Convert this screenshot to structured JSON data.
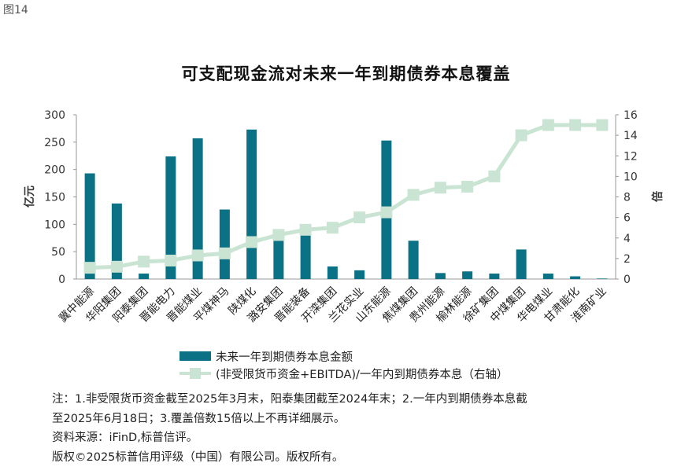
{
  "figure_label": "图14",
  "chart_data": {
    "type": "bar+line",
    "title": "可支配现金流对未来一年到期债券本息覆盖",
    "ylabel_left": "亿元",
    "ylabel_right": "倍",
    "ylim_left": [
      0,
      300
    ],
    "ylim_right": [
      0,
      16
    ],
    "yticks_left": [
      "0",
      "50",
      "100",
      "150",
      "200",
      "250",
      "300"
    ],
    "yticks_right": [
      "0",
      "2",
      "4",
      "6",
      "8",
      "10",
      "12",
      "14",
      "16"
    ],
    "categories": [
      "冀中能源",
      "华阳集团",
      "阳泰集团",
      "晋能电力",
      "晋能煤业",
      "平煤神马",
      "陕煤化",
      "潞安集团",
      "晋能装备",
      "开滦集团",
      "兰花实业",
      "山东能源",
      "焦煤集团",
      "贵州能源",
      "榆林能源",
      "徐矿集团",
      "中煤集团",
      "华电煤业",
      "甘肃能化",
      "淮南矿业"
    ],
    "series": [
      {
        "name": "未来一年到期债券本息金额",
        "type": "bar",
        "axis": "left",
        "color": "#0b7285",
        "values": [
          193,
          138,
          10,
          224,
          257,
          127,
          273,
          70,
          80,
          23,
          16,
          253,
          70,
          11,
          14,
          10,
          54,
          10,
          5,
          1
        ]
      },
      {
        "name": "(非受限货币资金+EBITDA)/一年内到期债券本息（右轴）",
        "type": "line",
        "axis": "right",
        "color": "#c9e4d2",
        "values": [
          1.1,
          1.2,
          1.7,
          1.8,
          2.3,
          2.5,
          3.6,
          4.3,
          4.8,
          5.0,
          6.0,
          6.5,
          8.2,
          8.9,
          9.0,
          10.0,
          14.0,
          15.0,
          15.0,
          15.0
        ]
      }
    ]
  },
  "legend": {
    "bar_label": "未来一年到期债券本息金额",
    "line_label": "(非受限货币资金+EBITDA)/一年内到期债券本息（右轴）"
  },
  "notes": {
    "line1": "注：1.非受限货币资金截至2025年3月末，阳泰集团截至2024年末；2.一年内到期债券本息截",
    "line2": "至2025年6月18日；3.覆盖倍数15倍以上不再详细展示。",
    "source": "资料来源：iFinD,标普信评。",
    "copyright": "版权©2025标普信用评级（中国）有限公司。版权所有。"
  }
}
